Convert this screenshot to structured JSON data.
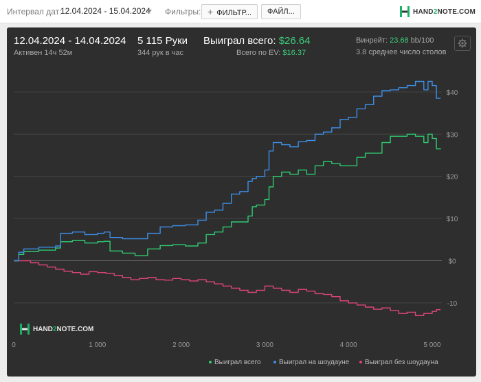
{
  "toolbar": {
    "date_label": "Интервал дат:",
    "date_value": "12.04.2024 - 15.04.2024",
    "filters_label": "Фильтры:",
    "filter_button": "ФИЛЬТР...",
    "file_button": "ФАЙЛ...",
    "logo_text_a": "HAND",
    "logo_text_b": "2",
    "logo_text_c": "NOTE.COM"
  },
  "summary": {
    "period": "12.04.2024 - 14.04.2024",
    "active": "Активен 14ч 52м",
    "hands": "5 115 Руки",
    "hands_rate": "344 рук в час",
    "won_label": "Выиграл всего:",
    "won_value": "$26.64",
    "ev_label": "Всего по EV:",
    "ev_value": "$16.37",
    "winrate_label": "Винрейт:",
    "winrate_value": "23.68",
    "winrate_unit": "bb/100",
    "tables": "3.8 среднее число столов"
  },
  "colors": {
    "won_total": "#2ecc71",
    "showdown": "#3d8fe8",
    "non_showdown": "#e0457b",
    "panel_bg": "#2e2e2e"
  },
  "chart_data": {
    "type": "line",
    "xlim": [
      0,
      5115
    ],
    "ylim": [
      -18,
      46
    ],
    "x_ticks": [
      0,
      1000,
      2000,
      3000,
      4000,
      5000
    ],
    "x_tick_labels": [
      "0",
      "1 000",
      "2 000",
      "3 000",
      "4 000",
      "5 000"
    ],
    "y_ticks": [
      -10,
      0,
      10,
      20,
      30,
      40
    ],
    "y_tick_labels": [
      "-10",
      "$0",
      "$10",
      "$20",
      "$30",
      "$40"
    ],
    "grid": true,
    "legend": "bottom-right",
    "series": [
      {
        "name": "Выиграл всего",
        "color": "#2ecc71",
        "x": [
          0,
          60,
          120,
          300,
          500,
          560,
          700,
          850,
          1000,
          1080,
          1150,
          1300,
          1450,
          1600,
          1750,
          1900,
          2050,
          2200,
          2300,
          2400,
          2500,
          2600,
          2700,
          2800,
          2850,
          2900,
          3000,
          3050,
          3100,
          3200,
          3300,
          3400,
          3500,
          3600,
          3700,
          3800,
          3900,
          4000,
          4100,
          4200,
          4300,
          4400,
          4500,
          4600,
          4700,
          4800,
          4900,
          4950,
          5000,
          5050,
          5100
        ],
        "y": [
          0,
          1.5,
          2.2,
          2.5,
          3,
          4.5,
          4.8,
          4.2,
          4.5,
          4.6,
          2.3,
          1.8,
          1.2,
          2.8,
          3.6,
          3.8,
          3.5,
          4.2,
          6.2,
          6.8,
          8,
          9.2,
          9.2,
          10.6,
          12.8,
          13.2,
          14.5,
          17.5,
          20,
          21,
          20.5,
          21.5,
          20.5,
          22.5,
          23.5,
          23,
          22.5,
          22.5,
          24.5,
          25.5,
          25.5,
          28,
          29.5,
          29.5,
          30,
          29.5,
          28,
          30,
          29,
          26.5,
          26.6
        ]
      },
      {
        "name": "Выиграл на шоудауне",
        "color": "#3d8fe8",
        "x": [
          0,
          60,
          120,
          300,
          500,
          560,
          700,
          850,
          1000,
          1080,
          1150,
          1300,
          1450,
          1600,
          1750,
          1900,
          2050,
          2200,
          2300,
          2400,
          2500,
          2600,
          2700,
          2800,
          2850,
          2900,
          3000,
          3050,
          3100,
          3200,
          3300,
          3400,
          3500,
          3600,
          3700,
          3800,
          3900,
          4000,
          4100,
          4200,
          4300,
          4400,
          4500,
          4600,
          4700,
          4800,
          4900,
          4950,
          5000,
          5050,
          5100
        ],
        "y": [
          0,
          2,
          2.8,
          3.2,
          3.5,
          6.5,
          6.8,
          6.2,
          6.5,
          6.8,
          5.5,
          5.2,
          5.2,
          6.5,
          8,
          8.3,
          8.5,
          9.6,
          11.5,
          12,
          13.6,
          15.8,
          16.4,
          18.8,
          19.5,
          20,
          21.5,
          26,
          28,
          27.5,
          27,
          28.2,
          28.5,
          30,
          30.5,
          31.5,
          33.5,
          34,
          36,
          37,
          39,
          40.3,
          40.5,
          41,
          41.5,
          42.5,
          40.5,
          42.5,
          41.5,
          38.5,
          38.5
        ]
      },
      {
        "name": "Выиграл без шоудауна",
        "color": "#e0457b",
        "x": [
          0,
          100,
          200,
          300,
          400,
          500,
          600,
          700,
          800,
          900,
          1000,
          1100,
          1200,
          1300,
          1400,
          1500,
          1600,
          1700,
          1800,
          1900,
          2000,
          2100,
          2200,
          2300,
          2400,
          2500,
          2600,
          2700,
          2800,
          2900,
          3000,
          3100,
          3200,
          3300,
          3400,
          3500,
          3600,
          3700,
          3800,
          3900,
          4000,
          4100,
          4200,
          4300,
          4400,
          4500,
          4600,
          4700,
          4800,
          4900,
          5000,
          5050,
          5100
        ],
        "y": [
          0,
          0,
          -0.5,
          -1,
          -1.5,
          -2,
          -2.5,
          -2.8,
          -3.2,
          -2.6,
          -2.8,
          -3,
          -3.5,
          -4,
          -4.5,
          -4.2,
          -4,
          -4.5,
          -4.6,
          -4.2,
          -4.5,
          -4.8,
          -4.5,
          -5,
          -5.5,
          -6,
          -6.5,
          -7,
          -7.5,
          -7,
          -6,
          -6.5,
          -7,
          -7.5,
          -6.8,
          -7.2,
          -7.8,
          -8,
          -8.5,
          -9.5,
          -10,
          -10.5,
          -11,
          -11.5,
          -11.2,
          -11.8,
          -12.5,
          -12.2,
          -13,
          -12.5,
          -12,
          -11.6,
          -11.6
        ]
      }
    ]
  },
  "watermark": {
    "a": "HAND",
    "b": "2",
    "c": "NOTE.COM"
  }
}
